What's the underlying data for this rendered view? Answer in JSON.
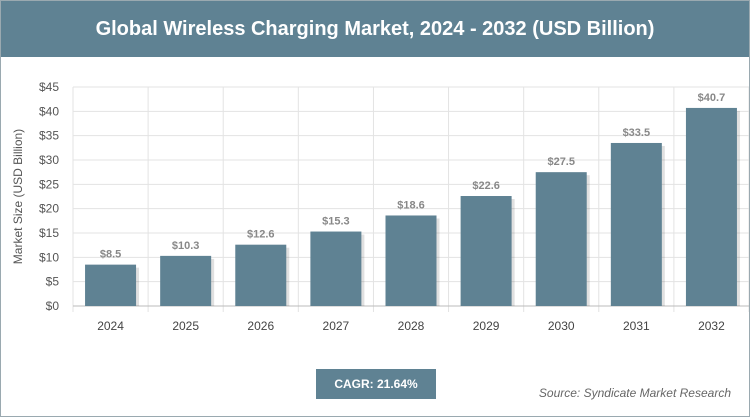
{
  "chart_data": {
    "type": "bar",
    "title": "Global Wireless Charging Market, 2024 - 2032 (USD Billion)",
    "xlabel": "",
    "ylabel": "Market Size (USD Billion)",
    "categories": [
      "2024",
      "2025",
      "2026",
      "2027",
      "2028",
      "2029",
      "2030",
      "2031",
      "2032"
    ],
    "values": [
      8.5,
      10.3,
      12.6,
      15.3,
      18.6,
      22.6,
      27.5,
      33.5,
      40.7
    ],
    "data_labels": [
      "$8.5",
      "$10.3",
      "$12.6",
      "$15.3",
      "$18.6",
      "$22.6",
      "$27.5",
      "$33.5",
      "$40.7"
    ],
    "ylim": [
      0,
      45
    ],
    "yticks": [
      "$0",
      "$5",
      "$10",
      "$15",
      "$20",
      "$25",
      "$30",
      "$35",
      "$40",
      "$45"
    ],
    "grid": true,
    "bar_color": "#5f8293"
  },
  "cagr_label": "CAGR: 21.64%",
  "source": "Source: Syndicate Market Research"
}
